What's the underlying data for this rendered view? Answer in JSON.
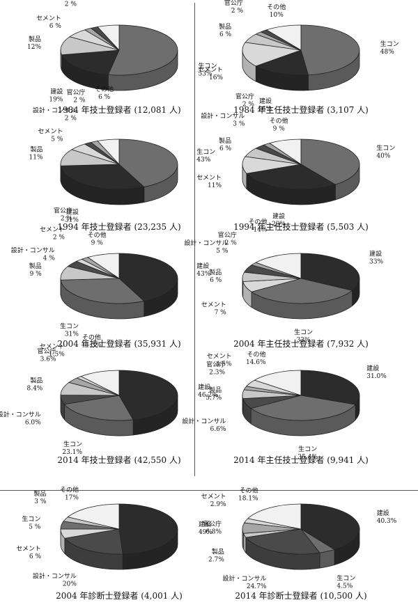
{
  "palette": {
    "生コン": "#6e6e6e",
    "建設": "#2c2c2c",
    "製品": "#c8c8c8",
    "セメント": "#d9d9d9",
    "設計・コンサル": "#4a4a4a",
    "官公庁": "#a6a6a6",
    "その他": "#f1f1f1"
  },
  "chart_data": [
    {
      "type": "pie",
      "title": "1984 年技士登録者 (12,081 人)",
      "slices": [
        {
          "label": "生コン",
          "value": 53,
          "text": "53%"
        },
        {
          "label": "建設",
          "value": 19,
          "text": "19%"
        },
        {
          "label": "製品",
          "value": 12,
          "text": "12%"
        },
        {
          "label": "セメント",
          "value": 6,
          "text": "6 %"
        },
        {
          "label": "官公庁",
          "value": 2,
          "text": "2 %"
        },
        {
          "label": "設計・コンサル",
          "value": 2,
          "text": "2 %"
        },
        {
          "label": "その他",
          "value": 6,
          "text": "6 %"
        }
      ]
    },
    {
      "type": "pie",
      "title": "1984 年主任技士登録者 (3,107 人)",
      "slices": [
        {
          "label": "生コン",
          "value": 48,
          "text": "48%"
        },
        {
          "label": "建設",
          "value": 16,
          "text": "16%"
        },
        {
          "label": "セメント",
          "value": 16,
          "text": "16%"
        },
        {
          "label": "製品",
          "value": 6,
          "text": "6 %"
        },
        {
          "label": "官公庁",
          "value": 2,
          "text": "2 %"
        },
        {
          "label": "設計・コンサル",
          "value": 2,
          "text": "2 %"
        },
        {
          "label": "その他",
          "value": 10,
          "text": "10%"
        }
      ]
    },
    {
      "type": "pie",
      "title": "1994 年技士登録者 (23,235 人)",
      "slices": [
        {
          "label": "生コン",
          "value": 43,
          "text": "43%"
        },
        {
          "label": "建設",
          "value": 31,
          "text": "31%"
        },
        {
          "label": "製品",
          "value": 11,
          "text": "11%"
        },
        {
          "label": "セメント",
          "value": 5,
          "text": "5 %"
        },
        {
          "label": "設計・コンサル",
          "value": 2,
          "text": "2 %"
        },
        {
          "label": "官公庁",
          "value": 2,
          "text": "2 %"
        },
        {
          "label": "その他",
          "value": 6,
          "text": "6 %"
        }
      ]
    },
    {
      "type": "pie",
      "title": "1994 年主任技士登録者 (5,503 人)",
      "slices": [
        {
          "label": "生コン",
          "value": 40,
          "text": "40%"
        },
        {
          "label": "建設",
          "value": 29,
          "text": "29%"
        },
        {
          "label": "セメント",
          "value": 11,
          "text": "11%"
        },
        {
          "label": "製品",
          "value": 6,
          "text": "6 %"
        },
        {
          "label": "設計・コンサル",
          "value": 3,
          "text": "3 %"
        },
        {
          "label": "官公庁",
          "value": 2,
          "text": "2 %"
        },
        {
          "label": "その他",
          "value": 9,
          "text": "9 %"
        }
      ]
    },
    {
      "type": "pie",
      "title": "2004 年技士登録者 (35,931 人)",
      "slices": [
        {
          "label": "建設",
          "value": 43,
          "text": "43%"
        },
        {
          "label": "生コン",
          "value": 31,
          "text": "31%"
        },
        {
          "label": "製品",
          "value": 9,
          "text": "9 %"
        },
        {
          "label": "設計・コンサル",
          "value": 4,
          "text": "4 %"
        },
        {
          "label": "セメント",
          "value": 2,
          "text": "2 %"
        },
        {
          "label": "官公庁",
          "value": 2,
          "text": "2 %"
        },
        {
          "label": "その他",
          "value": 9,
          "text": "9 %"
        }
      ]
    },
    {
      "type": "pie",
      "title": "2004 年主任技士登録者 (7,932 人)",
      "slices": [
        {
          "label": "建設",
          "value": 33,
          "text": "33%"
        },
        {
          "label": "生コン",
          "value": 33,
          "text": "33%"
        },
        {
          "label": "セメント",
          "value": 7,
          "text": "7 %"
        },
        {
          "label": "製品",
          "value": 6,
          "text": "6 %"
        },
        {
          "label": "設計・コンサル",
          "value": 5,
          "text": "5 %"
        },
        {
          "label": "官公庁",
          "value": 2,
          "text": "2 %"
        },
        {
          "label": "その他",
          "value": 14,
          "text": "14%"
        }
      ]
    },
    {
      "type": "pie",
      "title": "2014 年技士登録者 (42,550 人)",
      "slices": [
        {
          "label": "建設",
          "value": 46.2,
          "text": "46.2%"
        },
        {
          "label": "生コン",
          "value": 23.1,
          "text": "23.1%"
        },
        {
          "label": "設計・コンサル",
          "value": 6.0,
          "text": "6.0%"
        },
        {
          "label": "製品",
          "value": 8.4,
          "text": "8.4%"
        },
        {
          "label": "官公庁",
          "value": 3.6,
          "text": "3.6%"
        },
        {
          "label": "セメント",
          "value": 1.5,
          "text": "1.5%"
        },
        {
          "label": "その他",
          "value": 11.3,
          "text": "11.3%"
        }
      ]
    },
    {
      "type": "pie",
      "title": "2014 年主任技士登録者 (9,941 人)",
      "slices": [
        {
          "label": "建設",
          "value": 31.0,
          "text": "31.0%"
        },
        {
          "label": "生コン",
          "value": 35.4,
          "text": "35.4%"
        },
        {
          "label": "設計・コンサル",
          "value": 6.6,
          "text": "6.6%"
        },
        {
          "label": "製品",
          "value": 5.7,
          "text": "5.7%"
        },
        {
          "label": "官公庁",
          "value": 2.3,
          "text": "2.3%"
        },
        {
          "label": "セメント",
          "value": 4.5,
          "text": "4.5%"
        },
        {
          "label": "その他",
          "value": 14.6,
          "text": "14.6%"
        }
      ]
    },
    {
      "type": "pie",
      "title": "2004 年診断士登録者 (4,001 人)",
      "slices": [
        {
          "label": "建設",
          "value": 49,
          "text": "49%"
        },
        {
          "label": "設計・コンサル",
          "value": 20,
          "text": "20%"
        },
        {
          "label": "セメント",
          "value": 6,
          "text": "6 %"
        },
        {
          "label": "生コン",
          "value": 5,
          "text": "5 %"
        },
        {
          "label": "製品",
          "value": 3,
          "text": "3 %"
        },
        {
          "label": "その他",
          "value": 17,
          "text": "17%"
        }
      ]
    },
    {
      "type": "pie",
      "title": "2014 年診断士登録者 (10,500 人)",
      "slices": [
        {
          "label": "建設",
          "value": 40.3,
          "text": "40.3%"
        },
        {
          "label": "生コン",
          "value": 4.5,
          "text": "4.5%"
        },
        {
          "label": "設計・コンサル",
          "value": 24.7,
          "text": "24.7%"
        },
        {
          "label": "製品",
          "value": 2.7,
          "text": "2.7%"
        },
        {
          "label": "官公庁",
          "value": 6.8,
          "text": "6.8%"
        },
        {
          "label": "セメント",
          "value": 2.9,
          "text": "2.9%"
        },
        {
          "label": "その他",
          "value": 18.1,
          "text": "18.1%"
        }
      ]
    }
  ]
}
